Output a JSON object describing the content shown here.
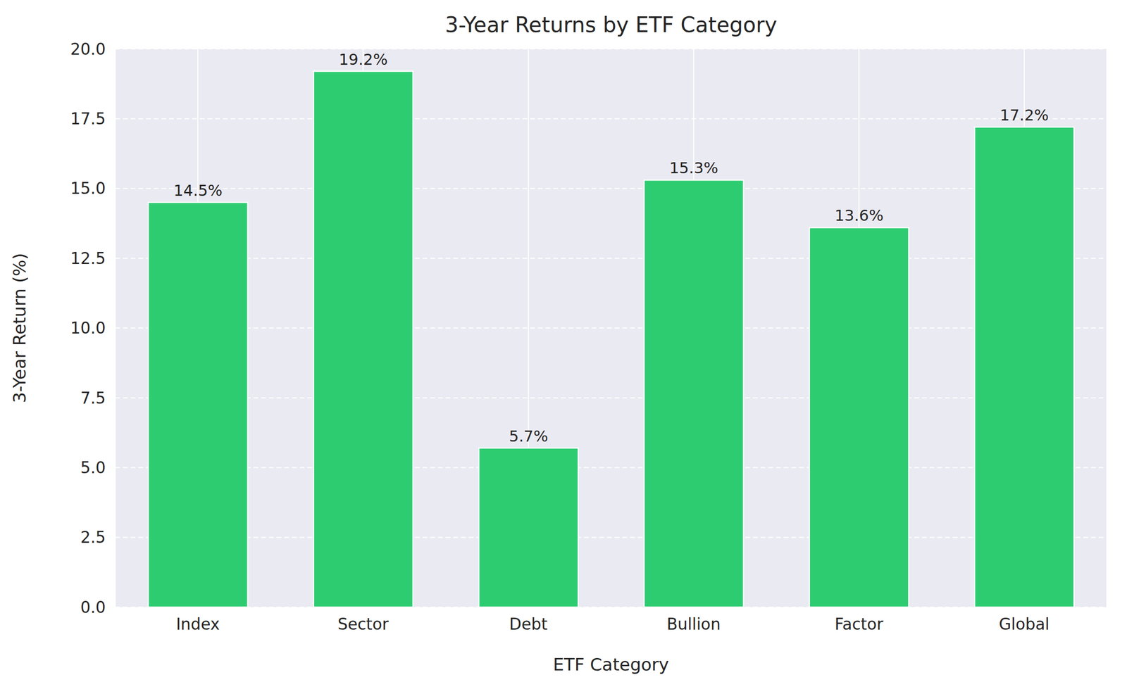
{
  "chart_data": {
    "type": "bar",
    "title": "3-Year Returns by ETF Category",
    "x_label": "ETF Category",
    "y_label": "3-Year Return (%)",
    "categories": [
      "Index",
      "Sector",
      "Debt",
      "Bullion",
      "Factor",
      "Global"
    ],
    "values": [
      14.5,
      19.2,
      5.7,
      15.3,
      13.6,
      17.2
    ],
    "value_labels": [
      "14.5%",
      "19.2%",
      "5.7%",
      "15.3%",
      "13.6%",
      "17.2%"
    ],
    "color": "#2ecc71",
    "ylim": [
      0,
      20
    ],
    "yticks": [
      {
        "value": 0,
        "label": "0.0"
      },
      2.5,
      {
        "value": 5,
        "label": "5.0"
      },
      7.5,
      {
        "value": 10,
        "label": "10.0"
      },
      12.5,
      {
        "value": 15,
        "label": "15.0"
      },
      17.5,
      {
        "value": 20,
        "label": "20.0"
      }
    ],
    "grid": true,
    "data_labels": true
  }
}
